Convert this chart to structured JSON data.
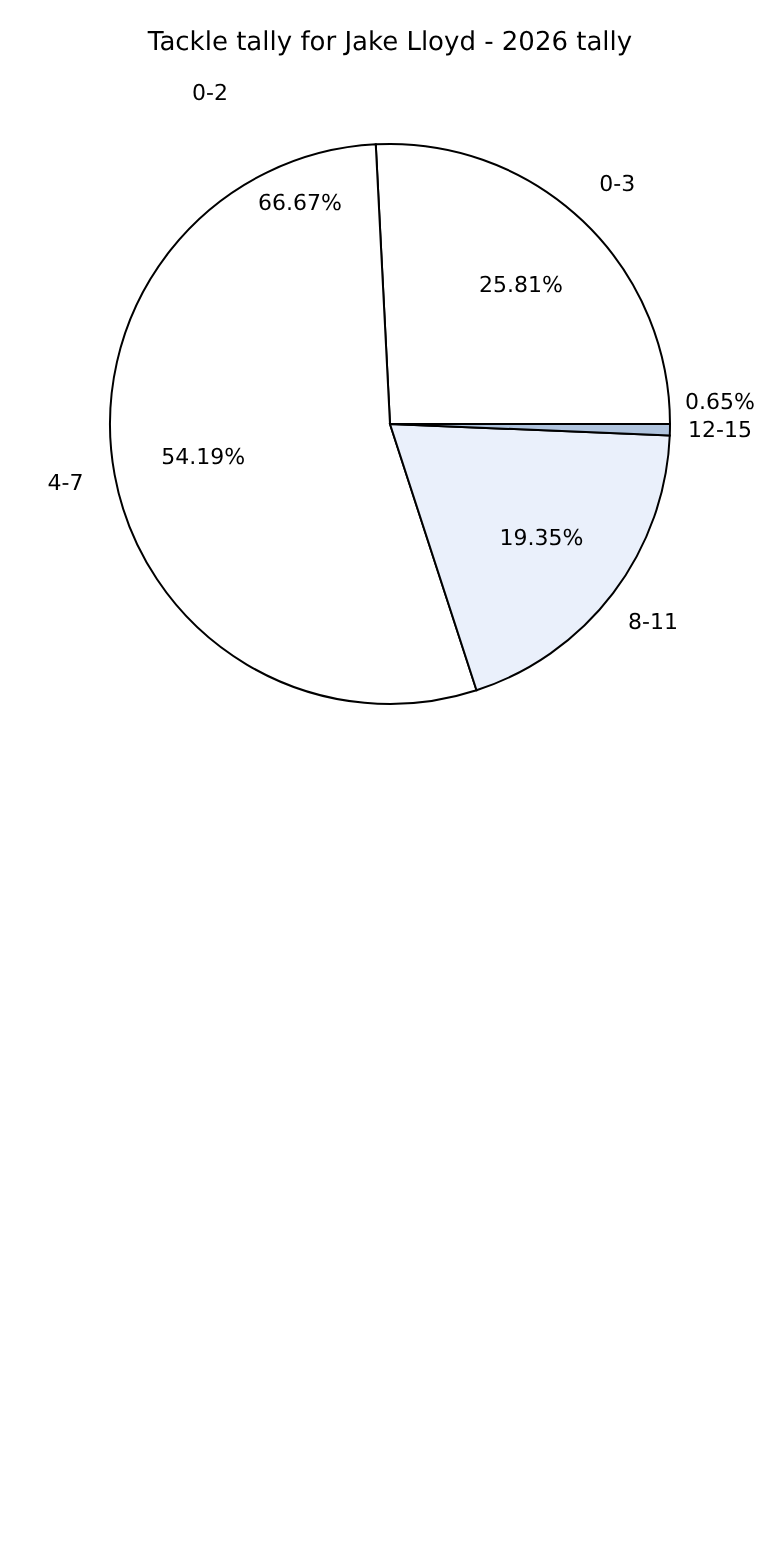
{
  "chart_data": {
    "type": "pie",
    "title": "Tackle tally for Jake Lloyd - 2026 tally",
    "categories": [
      "0-3",
      "4-7",
      "8-11",
      "12-15"
    ],
    "values": [
      25.81,
      54.19,
      19.35,
      0.65
    ],
    "value_labels": [
      "25.81%",
      "54.19%",
      "19.35%",
      "0.65%"
    ],
    "colors": [
      "#ffffff",
      "#ffffff",
      "#eaf0fb",
      "#b0c4de"
    ],
    "annotations": [
      "0-2",
      "66.67%"
    ],
    "legend": false
  }
}
